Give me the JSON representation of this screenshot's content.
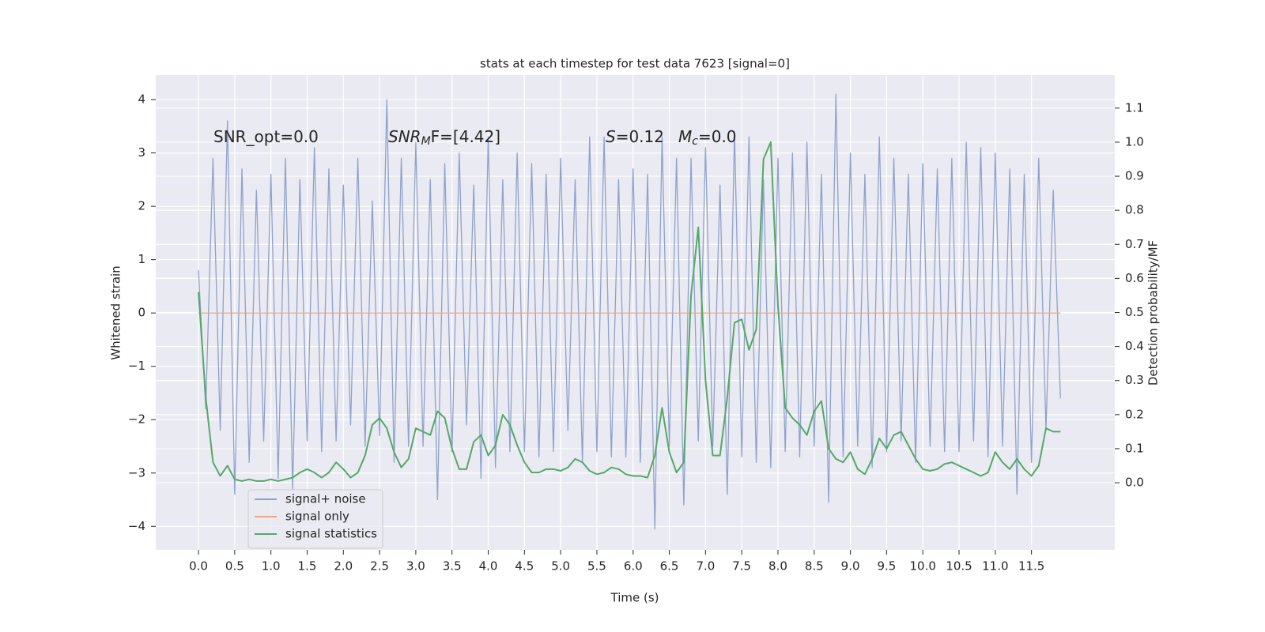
{
  "chart_data": {
    "type": "line",
    "title": "stats at each timestep for test data 7623 [signal=0]",
    "x_label": "Time (s)",
    "y_label": "Whitened strain",
    "y2_label": "Detection probability/MF",
    "annotations": [
      {
        "parts": [
          "SNR_opt=0.0"
        ]
      },
      {
        "parts": [
          "SNR",
          "M",
          "F=[4.42]"
        ]
      },
      {
        "parts": [
          "S",
          "=0.12"
        ]
      },
      {
        "parts": [
          "M",
          "c",
          "=0.0"
        ]
      }
    ],
    "xlim": [
      -0.59,
      12.65
    ],
    "ylim": [
      -4.44,
      4.46
    ],
    "y2lim": [
      -0.197,
      1.197
    ],
    "xticks": [
      {
        "value": 0,
        "label": "0.0"
      },
      0.5,
      {
        "value": 1,
        "label": "1.0"
      },
      1.5,
      {
        "value": 2,
        "label": "2.0"
      },
      2.5,
      {
        "value": 3,
        "label": "3.0"
      },
      3.5,
      {
        "value": 4,
        "label": "4.0"
      },
      4.5,
      {
        "value": 5,
        "label": "5.0"
      },
      5.5,
      {
        "value": 6,
        "label": "6.0"
      },
      6.5,
      {
        "value": 7,
        "label": "7.0"
      },
      7.5,
      {
        "value": 8,
        "label": "8.0"
      },
      8.5,
      {
        "value": 9,
        "label": "9.0"
      },
      9.5,
      {
        "value": 10,
        "label": "10.0"
      },
      10.5,
      {
        "value": 11,
        "label": "11.0"
      },
      11.5
    ],
    "yticks": [
      {
        "value": -4,
        "label": "−4"
      },
      {
        "value": -3,
        "label": "−3"
      },
      {
        "value": -2,
        "label": "−2"
      },
      {
        "value": -1,
        "label": "−1"
      },
      0,
      1,
      2,
      3,
      4
    ],
    "y2ticks": [
      {
        "value": 0,
        "label": "0.0"
      },
      0.1,
      0.2,
      0.3,
      0.4,
      0.5,
      0.6,
      0.7,
      0.8,
      0.9,
      {
        "value": 1,
        "label": "1.0"
      },
      1.1
    ],
    "grid": true,
    "legend": "lower left",
    "x": [
      0,
      0.1,
      0.2,
      0.3,
      0.4,
      0.5,
      0.6,
      0.7,
      0.8,
      0.9,
      1,
      1.1,
      1.2,
      1.3,
      1.4,
      1.5,
      1.6,
      1.7,
      1.8,
      1.9,
      2,
      2.1,
      2.2,
      2.3,
      2.4,
      2.5,
      2.6,
      2.7,
      2.8,
      2.9,
      3,
      3.1,
      3.2,
      3.3,
      3.4,
      3.5,
      3.6,
      3.7,
      3.8,
      3.9,
      4,
      4.1,
      4.2,
      4.3,
      4.4,
      4.5,
      4.6,
      4.7,
      4.8,
      4.9,
      5,
      5.1,
      5.2,
      5.3,
      5.4,
      5.5,
      5.6,
      5.7,
      5.8,
      5.9,
      6,
      6.1,
      6.2,
      6.3,
      6.4,
      6.5,
      6.6,
      6.7,
      6.8,
      6.9,
      7,
      7.1,
      7.2,
      7.3,
      7.4,
      7.5,
      7.6,
      7.7,
      7.8,
      7.9,
      8,
      8.1,
      8.2,
      8.3,
      8.4,
      8.5,
      8.6,
      8.7,
      8.8,
      8.9,
      9,
      9.1,
      9.2,
      9.3,
      9.4,
      9.5,
      9.6,
      9.7,
      9.8,
      9.9,
      10,
      10.1,
      10.2,
      10.3,
      10.4,
      10.5,
      10.6,
      10.7,
      10.8,
      10.9,
      11,
      11.1,
      11.2,
      11.3,
      11.4,
      11.5,
      11.6,
      11.7,
      11.8,
      11.9
    ],
    "series": [
      {
        "name": "signal+ noise",
        "color": "#8ea2cc",
        "values": [
          0.8,
          -1.8,
          2.9,
          -2.2,
          3.6,
          -3.4,
          2.7,
          -2.8,
          2.3,
          -2.4,
          2.6,
          -3.1,
          2.9,
          -3.3,
          2.5,
          -2.4,
          3.1,
          -2.6,
          2.7,
          -2.4,
          2.4,
          -2.1,
          2.9,
          -2.5,
          2.1,
          -2.3,
          4.0,
          -2.8,
          2.9,
          -2.5,
          3.2,
          -2.5,
          2.5,
          -3.5,
          2.8,
          -2.6,
          3.0,
          -2.1,
          2.4,
          -3.1,
          3.3,
          -2.9,
          2.5,
          -2.6,
          3.0,
          -2.6,
          2.8,
          -2.7,
          2.6,
          -2.6,
          2.9,
          -2.2,
          2.5,
          -2.8,
          3.3,
          -2.6,
          3.3,
          -2.7,
          2.5,
          -2.7,
          2.7,
          -2.8,
          2.6,
          -4.05,
          3.3,
          -2.5,
          2.9,
          -3.6,
          2.9,
          -2.4,
          3.1,
          -2.5,
          2.4,
          -3.4,
          3.4,
          -2.7,
          3.3,
          -2.8,
          2.5,
          -2.9,
          2.9,
          -2.6,
          3.0,
          -2.7,
          3.2,
          -2.5,
          2.6,
          -3.55,
          4.1,
          -2.7,
          3.0,
          -2.5,
          2.6,
          -2.9,
          3.3,
          -2.6,
          2.9,
          -2.4,
          2.6,
          -2.8,
          2.8,
          -2.5,
          2.7,
          -2.6,
          2.9,
          -2.6,
          3.2,
          -2.4,
          3.1,
          -2.7,
          3.0,
          -2.5,
          2.7,
          -3.4,
          2.6,
          -2.8,
          2.9,
          -2.2,
          2.3,
          -1.6
        ]
      },
      {
        "name": "signal only",
        "color": "#e8a68d",
        "x": [
          0,
          11.9
        ],
        "values": [
          0,
          0
        ]
      },
      {
        "name": "signal statistics",
        "color": "#55a868",
        "axis": "y2",
        "values": [
          0.56,
          0.25,
          0.06,
          0.02,
          0.05,
          0.01,
          0.005,
          0.01,
          0.005,
          0.005,
          0.01,
          0.005,
          0.01,
          0.015,
          0.03,
          0.04,
          0.03,
          0.015,
          0.03,
          0.06,
          0.04,
          0.015,
          0.03,
          0.08,
          0.17,
          0.19,
          0.16,
          0.09,
          0.045,
          0.07,
          0.16,
          0.15,
          0.14,
          0.21,
          0.19,
          0.1,
          0.04,
          0.04,
          0.12,
          0.14,
          0.08,
          0.11,
          0.2,
          0.17,
          0.11,
          0.06,
          0.03,
          0.03,
          0.04,
          0.04,
          0.035,
          0.045,
          0.07,
          0.06,
          0.035,
          0.025,
          0.03,
          0.045,
          0.04,
          0.025,
          0.02,
          0.02,
          0.015,
          0.08,
          0.22,
          0.09,
          0.03,
          0.06,
          0.55,
          0.75,
          0.3,
          0.08,
          0.08,
          0.25,
          0.47,
          0.48,
          0.39,
          0.45,
          0.95,
          1.0,
          0.52,
          0.22,
          0.19,
          0.17,
          0.14,
          0.21,
          0.24,
          0.1,
          0.07,
          0.06,
          0.09,
          0.04,
          0.025,
          0.07,
          0.13,
          0.1,
          0.14,
          0.15,
          0.11,
          0.07,
          0.04,
          0.035,
          0.04,
          0.055,
          0.06,
          0.05,
          0.04,
          0.03,
          0.02,
          0.03,
          0.09,
          0.06,
          0.04,
          0.07,
          0.04,
          0.02,
          0.05,
          0.16,
          0.15,
          0.15
        ]
      }
    ]
  }
}
